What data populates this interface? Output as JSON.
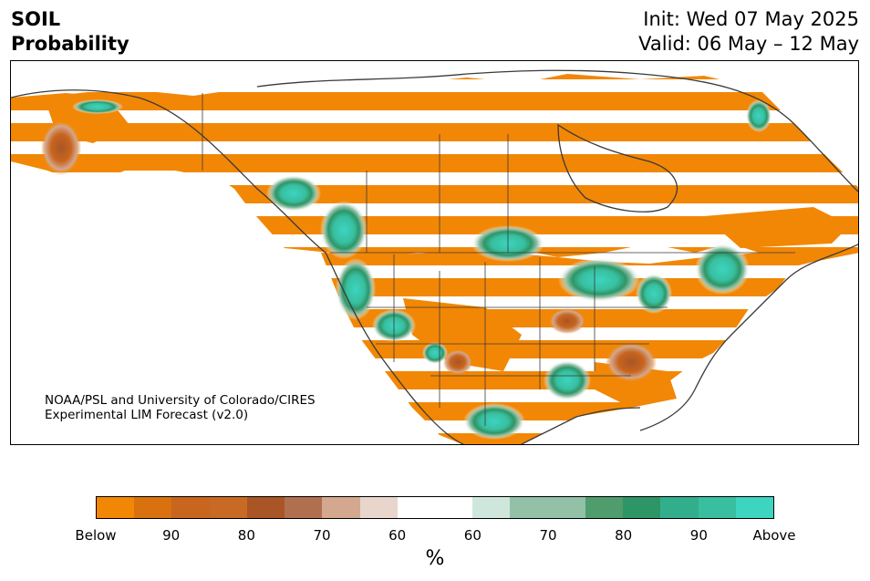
{
  "header": {
    "variable": "SOIL",
    "subtitle": "Probability",
    "init": "Init: Wed 07 May 2025",
    "valid": "Valid: 06 May – 12 May"
  },
  "credit": {
    "line1": "NOAA/PSL and University of Colorado/CIRES",
    "line2": "Experimental LIM Forecast (v2.0)"
  },
  "colorbar": {
    "colors": [
      "#f28705",
      "#d9720e",
      "#c8651e",
      "#c86a24",
      "#a95526",
      "#b07050",
      "#d3a88f",
      "#e8d6cc",
      "#ffffff",
      "#ffffff",
      "#cfe6dc",
      "#92c1a8",
      "#92c1a8",
      "#4f9c6d",
      "#2e9566",
      "#33ae8c",
      "#38bfa0",
      "#3dd4c0"
    ],
    "ticks": [
      "Below",
      "90",
      "80",
      "70",
      "60",
      "60",
      "70",
      "80",
      "90",
      "Above"
    ],
    "unit": "%"
  },
  "map": {
    "below_color": "#f28705",
    "above_color": "#3dd4c0",
    "border_color": "#3a3a3a"
  }
}
